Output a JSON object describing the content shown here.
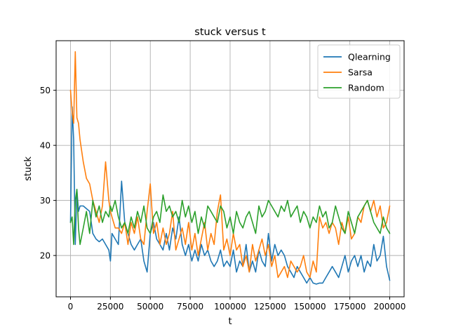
{
  "chart_data": {
    "type": "line",
    "title": "stuck versus t",
    "xlabel": "t",
    "ylabel": "stuck",
    "xlim": [
      -9000,
      209000
    ],
    "ylim": [
      12.5,
      59
    ],
    "xticks": [
      0,
      25000,
      50000,
      75000,
      100000,
      125000,
      150000,
      175000,
      200000
    ],
    "yticks": [
      20,
      30,
      40,
      50
    ],
    "grid": true,
    "legend": "top-right",
    "series": [
      {
        "name": "Qlearning",
        "color": "#1f77b4",
        "x": [
          0,
          1000,
          2000,
          3000,
          4000,
          5000,
          6000,
          8000,
          10000,
          12000,
          14000,
          16000,
          18000,
          20000,
          22000,
          24000,
          25000,
          26000,
          28000,
          30000,
          32000,
          34000,
          36000,
          38000,
          40000,
          42000,
          44000,
          46000,
          48000,
          50000,
          52000,
          54000,
          56000,
          58000,
          60000,
          62000,
          64000,
          66000,
          68000,
          70000,
          72000,
          74000,
          76000,
          78000,
          80000,
          82000,
          84000,
          86000,
          88000,
          90000,
          92000,
          94000,
          96000,
          98000,
          100000,
          102000,
          104000,
          106000,
          108000,
          110000,
          112000,
          114000,
          116000,
          118000,
          120000,
          122000,
          124000,
          126000,
          128000,
          130000,
          132000,
          134000,
          136000,
          138000,
          140000,
          142000,
          144000,
          146000,
          148000,
          150000,
          152000,
          154000,
          156000,
          158000,
          160000,
          162000,
          164000,
          166000,
          168000,
          170000,
          172000,
          174000,
          176000,
          178000,
          180000,
          182000,
          184000,
          186000,
          188000,
          190000,
          192000,
          194000,
          196000,
          198000,
          200000
        ],
        "y": [
          26,
          47,
          41,
          22,
          32,
          28,
          29,
          29,
          28.5,
          28,
          24,
          23,
          22.5,
          23,
          22,
          21,
          19,
          24,
          23,
          22,
          33.5,
          26,
          24,
          22,
          21,
          22,
          23,
          19,
          17,
          24,
          26,
          23,
          22,
          21,
          24,
          21,
          25,
          23,
          27,
          22,
          20,
          22,
          19,
          21,
          19,
          22,
          20,
          21,
          19,
          18,
          19,
          21,
          18,
          19,
          18,
          21,
          17,
          19,
          18,
          22,
          17,
          19,
          17,
          21,
          19,
          18,
          24,
          19,
          22,
          20,
          21,
          20,
          18,
          17,
          16,
          18,
          17,
          16,
          15,
          16,
          15,
          14.8,
          15,
          15,
          16,
          17,
          18,
          17,
          16,
          18,
          20,
          17,
          19,
          20,
          18,
          20,
          17,
          19,
          18,
          22,
          19,
          20,
          23.5,
          18,
          15.5
        ]
      },
      {
        "name": "Sarsa",
        "color": "#ff7f0e",
        "x": [
          0,
          1000,
          2000,
          3000,
          4000,
          5000,
          6000,
          8000,
          10000,
          12000,
          14000,
          16000,
          18000,
          20000,
          22000,
          24000,
          25000,
          26000,
          28000,
          30000,
          32000,
          34000,
          36000,
          38000,
          40000,
          42000,
          44000,
          46000,
          48000,
          50000,
          52000,
          54000,
          56000,
          58000,
          60000,
          62000,
          64000,
          66000,
          68000,
          70000,
          72000,
          74000,
          76000,
          78000,
          80000,
          82000,
          84000,
          86000,
          88000,
          90000,
          92000,
          94000,
          96000,
          98000,
          100000,
          102000,
          104000,
          106000,
          108000,
          110000,
          112000,
          114000,
          116000,
          118000,
          120000,
          122000,
          124000,
          126000,
          128000,
          130000,
          132000,
          134000,
          136000,
          138000,
          140000,
          142000,
          144000,
          146000,
          148000,
          150000,
          152000,
          154000,
          156000,
          158000,
          160000,
          162000,
          164000,
          166000,
          168000,
          170000,
          172000,
          174000,
          176000,
          178000,
          180000,
          182000,
          184000,
          186000,
          188000,
          190000,
          192000,
          194000,
          196000,
          198000,
          200000
        ],
        "y": [
          50,
          46,
          44,
          57,
          45,
          44,
          41,
          37,
          34,
          33,
          30,
          28,
          26,
          29,
          37,
          30,
          28,
          27,
          25,
          25,
          24,
          26,
          22,
          26,
          24,
          27,
          23,
          22,
          28,
          33,
          24,
          26,
          22,
          25,
          22,
          24,
          28,
          21,
          23,
          25,
          22,
          26,
          21,
          24,
          20,
          23,
          26,
          21,
          24,
          22,
          28,
          31,
          21,
          23,
          20,
          24,
          21,
          22,
          18,
          20,
          17,
          22,
          19,
          21,
          23,
          20,
          22,
          18,
          20,
          16,
          17,
          18,
          16,
          19,
          18,
          17,
          18,
          20,
          17,
          16,
          19,
          17,
          27,
          25,
          26,
          24,
          26,
          25,
          22,
          26,
          24,
          27,
          23,
          24,
          27,
          26,
          29,
          30,
          28,
          30,
          27,
          29,
          25,
          26,
          29
        ]
      },
      {
        "name": "Random",
        "color": "#2ca02c",
        "x": [
          0,
          1000,
          2000,
          3000,
          4000,
          5000,
          6000,
          8000,
          10000,
          12000,
          14000,
          16000,
          18000,
          20000,
          22000,
          24000,
          25000,
          26000,
          28000,
          30000,
          32000,
          34000,
          36000,
          38000,
          40000,
          42000,
          44000,
          46000,
          48000,
          50000,
          52000,
          54000,
          56000,
          58000,
          60000,
          62000,
          64000,
          66000,
          68000,
          70000,
          72000,
          74000,
          76000,
          78000,
          80000,
          82000,
          84000,
          86000,
          88000,
          90000,
          92000,
          94000,
          96000,
          98000,
          100000,
          102000,
          104000,
          106000,
          108000,
          110000,
          112000,
          114000,
          116000,
          118000,
          120000,
          122000,
          124000,
          126000,
          128000,
          130000,
          132000,
          134000,
          136000,
          138000,
          140000,
          142000,
          144000,
          146000,
          148000,
          150000,
          152000,
          154000,
          156000,
          158000,
          160000,
          162000,
          164000,
          166000,
          168000,
          170000,
          172000,
          174000,
          176000,
          178000,
          180000,
          182000,
          184000,
          186000,
          188000,
          190000,
          192000,
          194000,
          196000,
          198000,
          200000
        ],
        "y": [
          26,
          27,
          22,
          30,
          32,
          25,
          22,
          25,
          28,
          24,
          30,
          27,
          29,
          26,
          28,
          27,
          29,
          28,
          30,
          27,
          25,
          26,
          24,
          27,
          25,
          28,
          26,
          29,
          25,
          24,
          27,
          28,
          26,
          31,
          28,
          29,
          27,
          28,
          26,
          30,
          27,
          29,
          26,
          28,
          24,
          27,
          25,
          29,
          28,
          27,
          26,
          29,
          28,
          25,
          27,
          24,
          28,
          26,
          25,
          27,
          28,
          26,
          24,
          29,
          27,
          28,
          30,
          29,
          28,
          27,
          29,
          28,
          30,
          27,
          28,
          29,
          26,
          28,
          27,
          25,
          27,
          26,
          29,
          27,
          28,
          25,
          26,
          29,
          27,
          25,
          24,
          28,
          26,
          24,
          27,
          28,
          29,
          30,
          28,
          26,
          25,
          24,
          27,
          25,
          24
        ]
      }
    ]
  }
}
